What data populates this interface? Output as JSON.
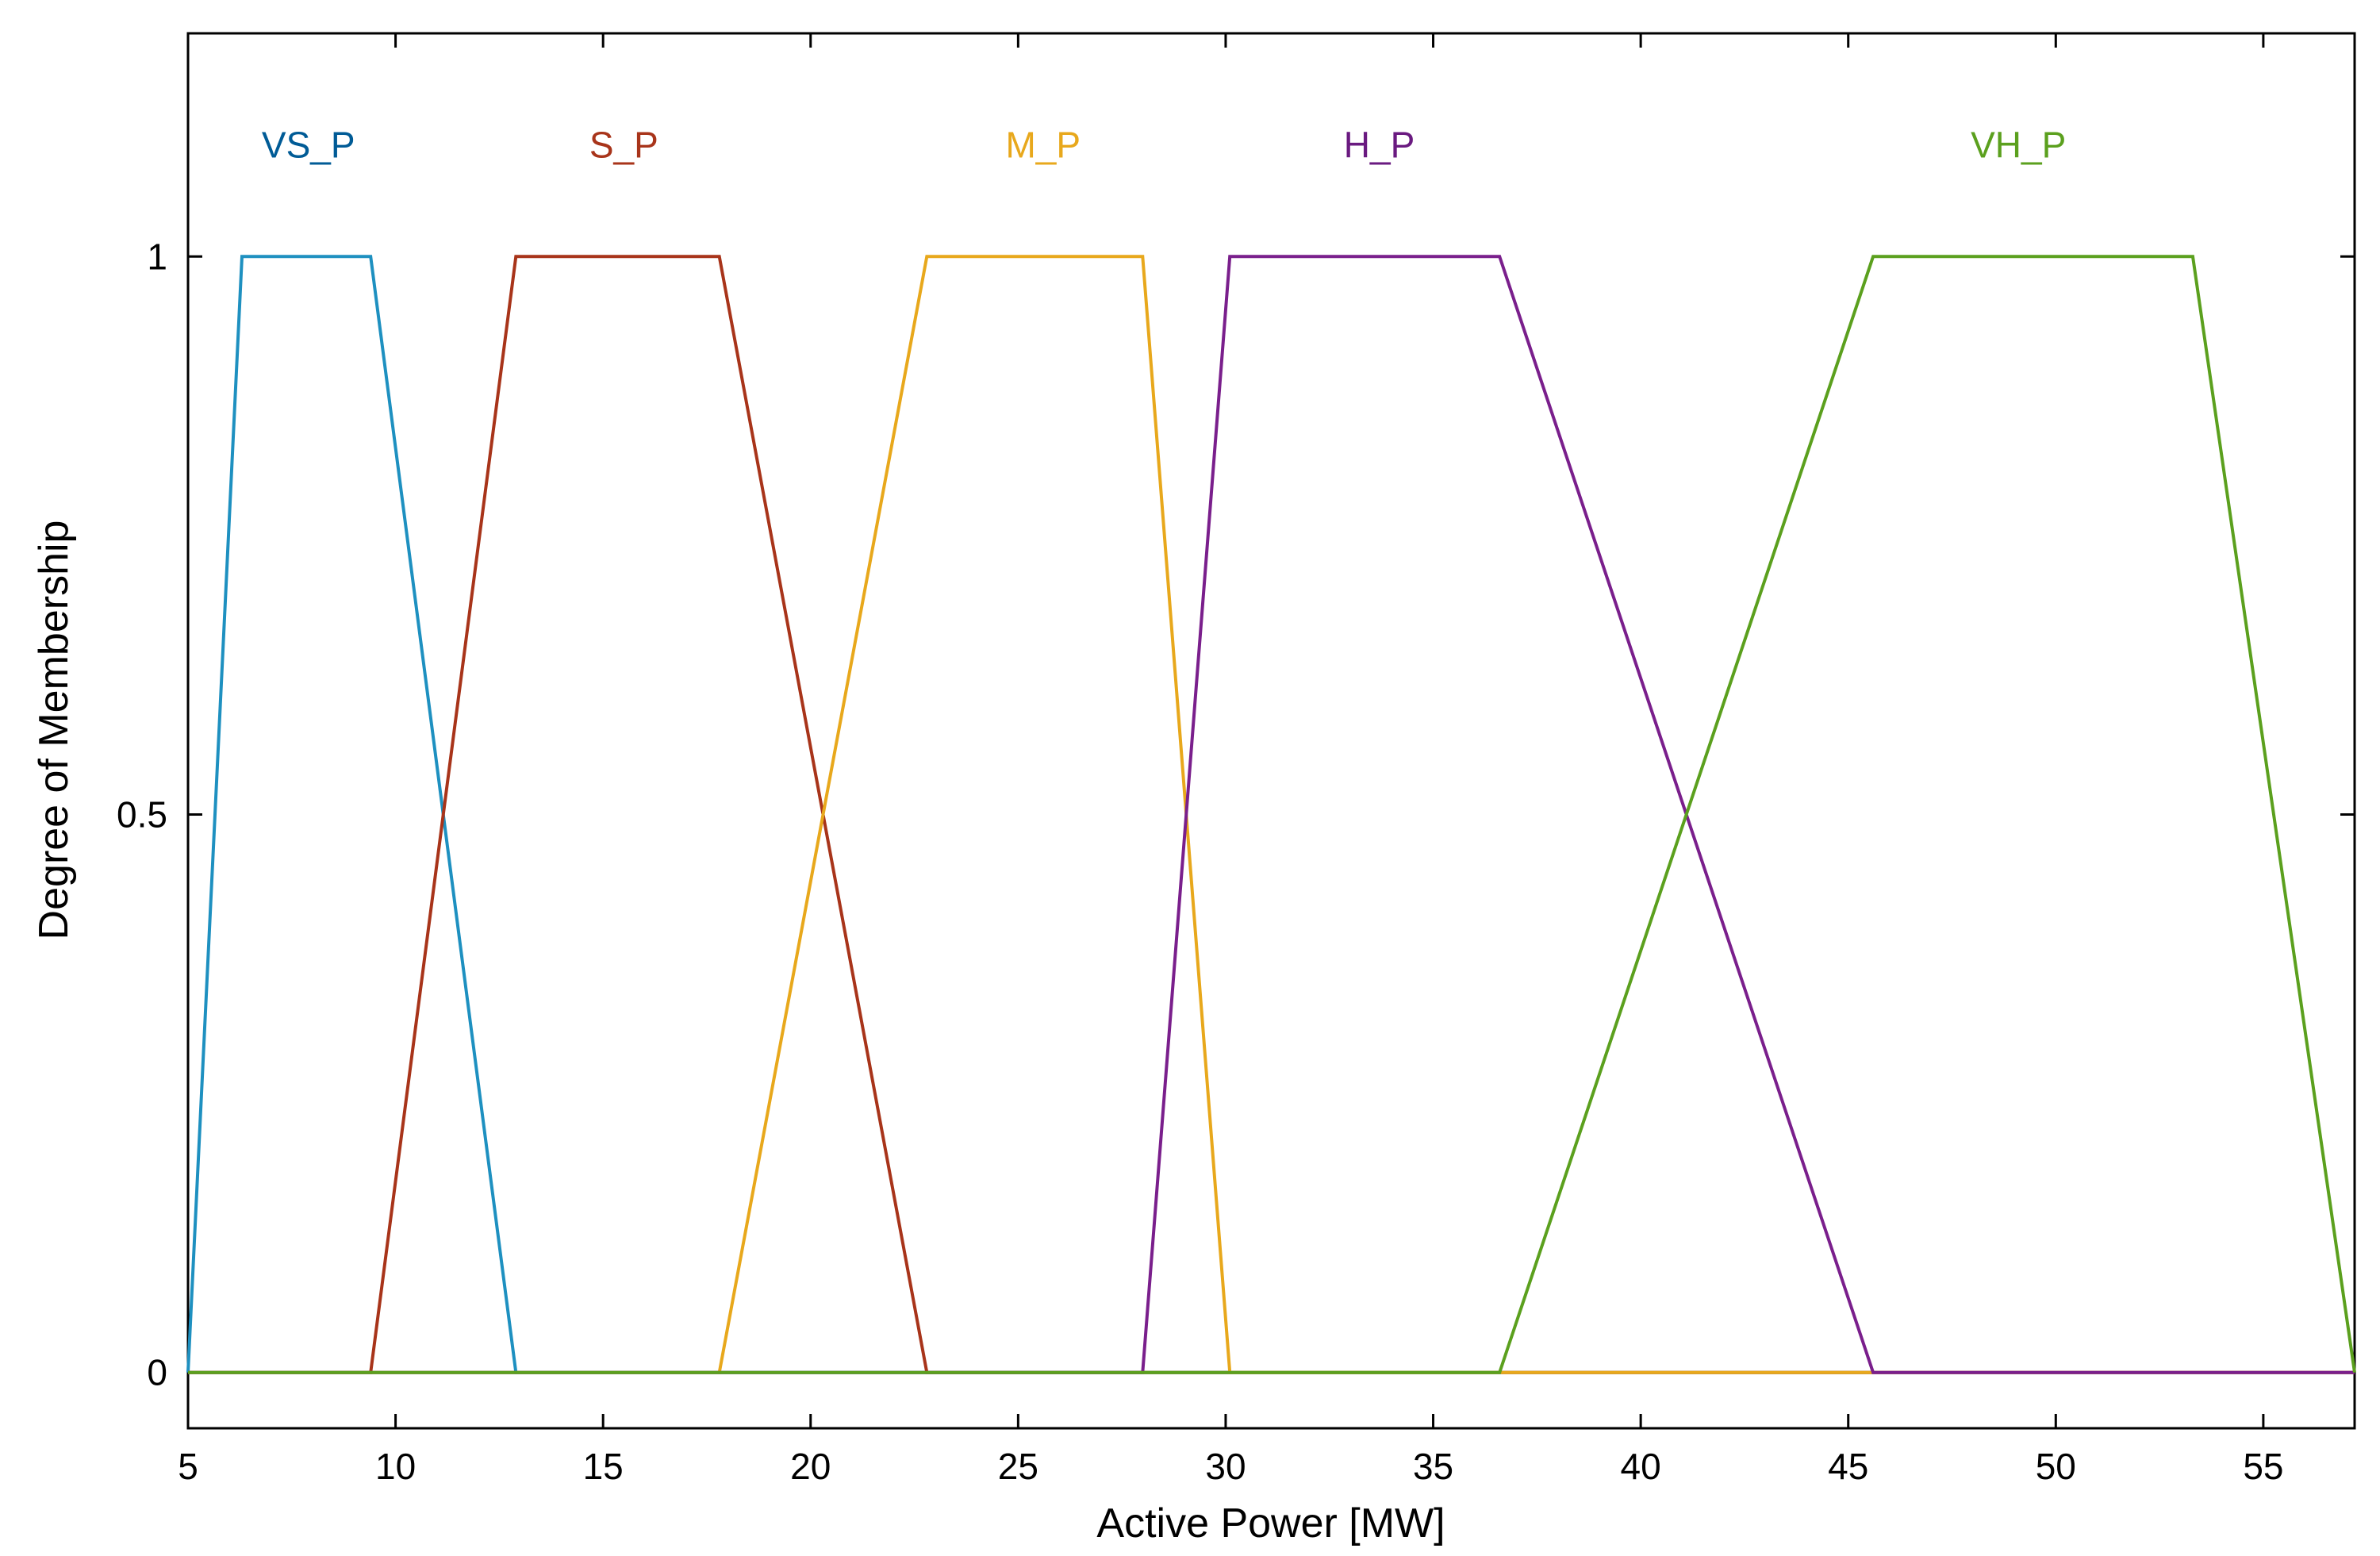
{
  "chart_data": {
    "type": "line",
    "title": "",
    "xlabel": "Active Power [MW]",
    "ylabel": "Degree of Membership",
    "xlim": [
      5,
      57.2
    ],
    "ylim": [
      -0.05,
      1.2
    ],
    "xticks": [
      5,
      10,
      15,
      20,
      25,
      30,
      35,
      40,
      45,
      50,
      55
    ],
    "yticks": [
      0,
      0.5,
      1
    ],
    "ytick_labels": [
      "0",
      "0.5",
      "1"
    ],
    "grid": false,
    "series": [
      {
        "name": "VS_P",
        "color": "#1E90C0",
        "label_color": "#005B96",
        "x": [
          5,
          6.3,
          9.4,
          12.9,
          57.2
        ],
        "y": [
          0,
          1,
          1,
          0,
          0
        ]
      },
      {
        "name": "S_P",
        "color": "#A8341A",
        "label_color": "#A8341A",
        "x": [
          5,
          9.4,
          12.9,
          17.8,
          22.8,
          57.2
        ],
        "y": [
          0,
          0,
          1,
          1,
          0,
          0
        ]
      },
      {
        "name": "M_P",
        "color": "#E8A81C",
        "label_color": "#E8A81C",
        "x": [
          5,
          17.8,
          22.8,
          28.0,
          30.1,
          57.2
        ],
        "y": [
          0,
          0,
          1,
          1,
          0,
          0
        ]
      },
      {
        "name": "H_P",
        "color": "#7A1F8C",
        "label_color": "#6A1A80",
        "x": [
          5,
          28.0,
          30.1,
          36.6,
          45.6,
          57.2
        ],
        "y": [
          0,
          0,
          1,
          1,
          0,
          0
        ]
      },
      {
        "name": "VH_P",
        "color": "#5BA01E",
        "label_color": "#5BA01E",
        "x": [
          5,
          36.6,
          45.6,
          53.3,
          57.2
        ],
        "y": [
          0,
          0,
          1,
          1,
          0
        ]
      }
    ],
    "series_label_x": [
      7.9,
      15.5,
      25.6,
      33.7,
      49.1
    ]
  }
}
